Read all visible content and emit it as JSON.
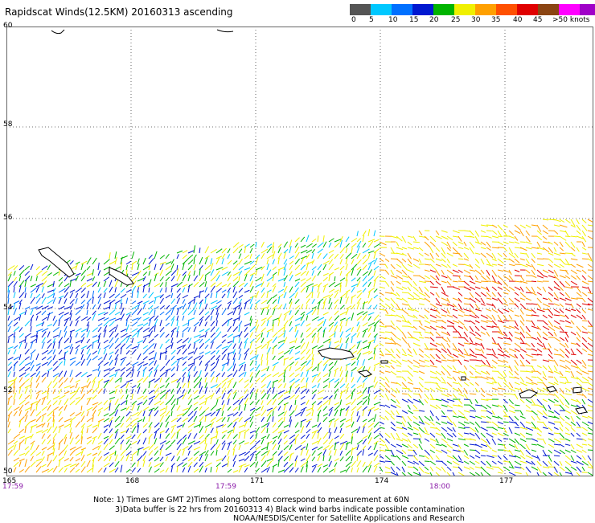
{
  "title": "Rapidscat Winds(12.5KM) 20160313 ascending",
  "colorbar": {
    "labels": [
      "0",
      "5",
      "10",
      "15",
      "20",
      "25",
      "30",
      "35",
      "40",
      "45",
      ">50 knots"
    ],
    "colors": [
      "#555555",
      "#00c8ff",
      "#0070ff",
      "#0018d0",
      "#00b400",
      "#f0f000",
      "#ffa000",
      "#ff5000",
      "#e00000",
      "#8b4513",
      "#ff00ff",
      "#a000c8",
      "#300060"
    ]
  },
  "latitudes": [
    "60",
    "58",
    "56",
    "54",
    "52",
    "50"
  ],
  "longitudes": [
    "165",
    "168",
    "171",
    "174",
    "177"
  ],
  "times": [
    "17:59",
    "17:59",
    "18:00"
  ],
  "footer": {
    "line1": "Note: 1) Times are GMT 2)Times along bottom correspond to measurement at 60N",
    "line2": "3)Data buffer is 22 hrs from 20160313 4) Black wind barbs indicate possible contamination",
    "line3": "NOAA/NESDIS/Center for Satellite Applications and Research"
  }
}
